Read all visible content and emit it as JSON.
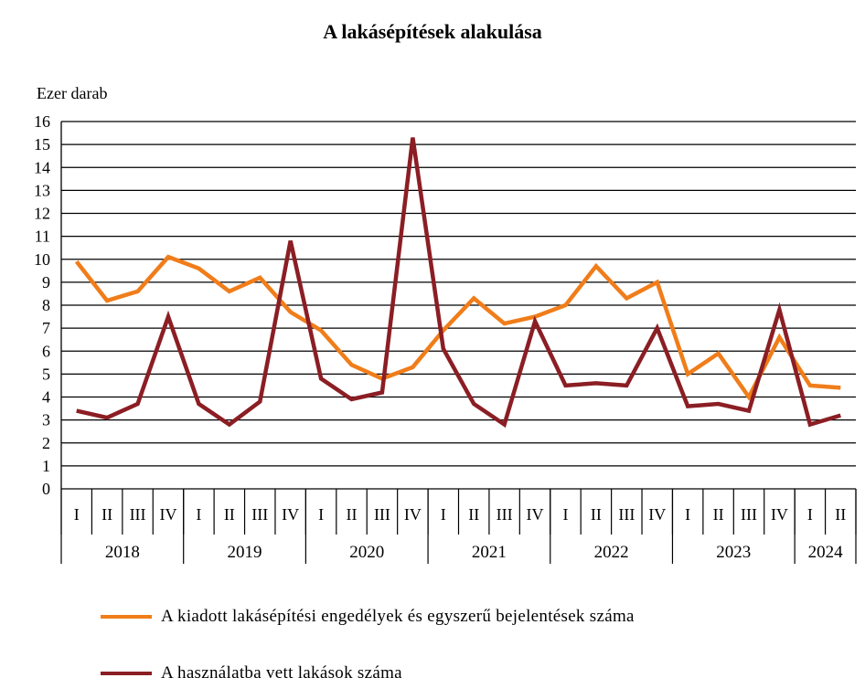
{
  "chart_data": {
    "type": "line",
    "title": "A lakásépítések alakulása",
    "ylabel": "Ezer darab",
    "xlabel": "",
    "ylim": [
      0,
      16
    ],
    "yticks": [
      0,
      1,
      2,
      3,
      4,
      5,
      6,
      7,
      8,
      9,
      10,
      11,
      12,
      13,
      14,
      15,
      16
    ],
    "grid": true,
    "legend_position": "bottom",
    "categories": [
      "I",
      "II",
      "III",
      "IV",
      "I",
      "II",
      "III",
      "IV",
      "I",
      "II",
      "III",
      "IV",
      "I",
      "II",
      "III",
      "IV",
      "I",
      "II",
      "III",
      "IV",
      "I",
      "II",
      "III",
      "IV",
      "I",
      "II"
    ],
    "years": [
      {
        "label": "2018",
        "count": 4
      },
      {
        "label": "2019",
        "count": 4
      },
      {
        "label": "2020",
        "count": 4
      },
      {
        "label": "2021",
        "count": 4
      },
      {
        "label": "2022",
        "count": 4
      },
      {
        "label": "2023",
        "count": 4
      },
      {
        "label": "2024",
        "count": 2
      }
    ],
    "series": [
      {
        "name": "A kiadott lakásépítési engedélyek és egyszerű bejelentések száma",
        "color": "#F07D1A",
        "values": [
          9.9,
          8.2,
          8.6,
          10.1,
          9.6,
          8.6,
          9.2,
          7.7,
          6.9,
          5.4,
          4.8,
          5.3,
          6.9,
          8.3,
          7.2,
          7.5,
          8.0,
          9.7,
          8.3,
          9.0,
          5.0,
          5.9,
          4.0,
          6.6,
          4.5,
          4.4
        ]
      },
      {
        "name": "A használatba vett lakások száma",
        "color": "#8B1E24",
        "values": [
          3.4,
          3.1,
          3.7,
          7.5,
          3.7,
          2.8,
          3.8,
          10.8,
          4.8,
          3.9,
          4.2,
          15.3,
          6.1,
          3.7,
          2.8,
          7.3,
          4.5,
          4.6,
          4.5,
          7.0,
          3.6,
          3.7,
          3.4,
          7.8,
          2.8,
          3.2
        ]
      }
    ]
  }
}
